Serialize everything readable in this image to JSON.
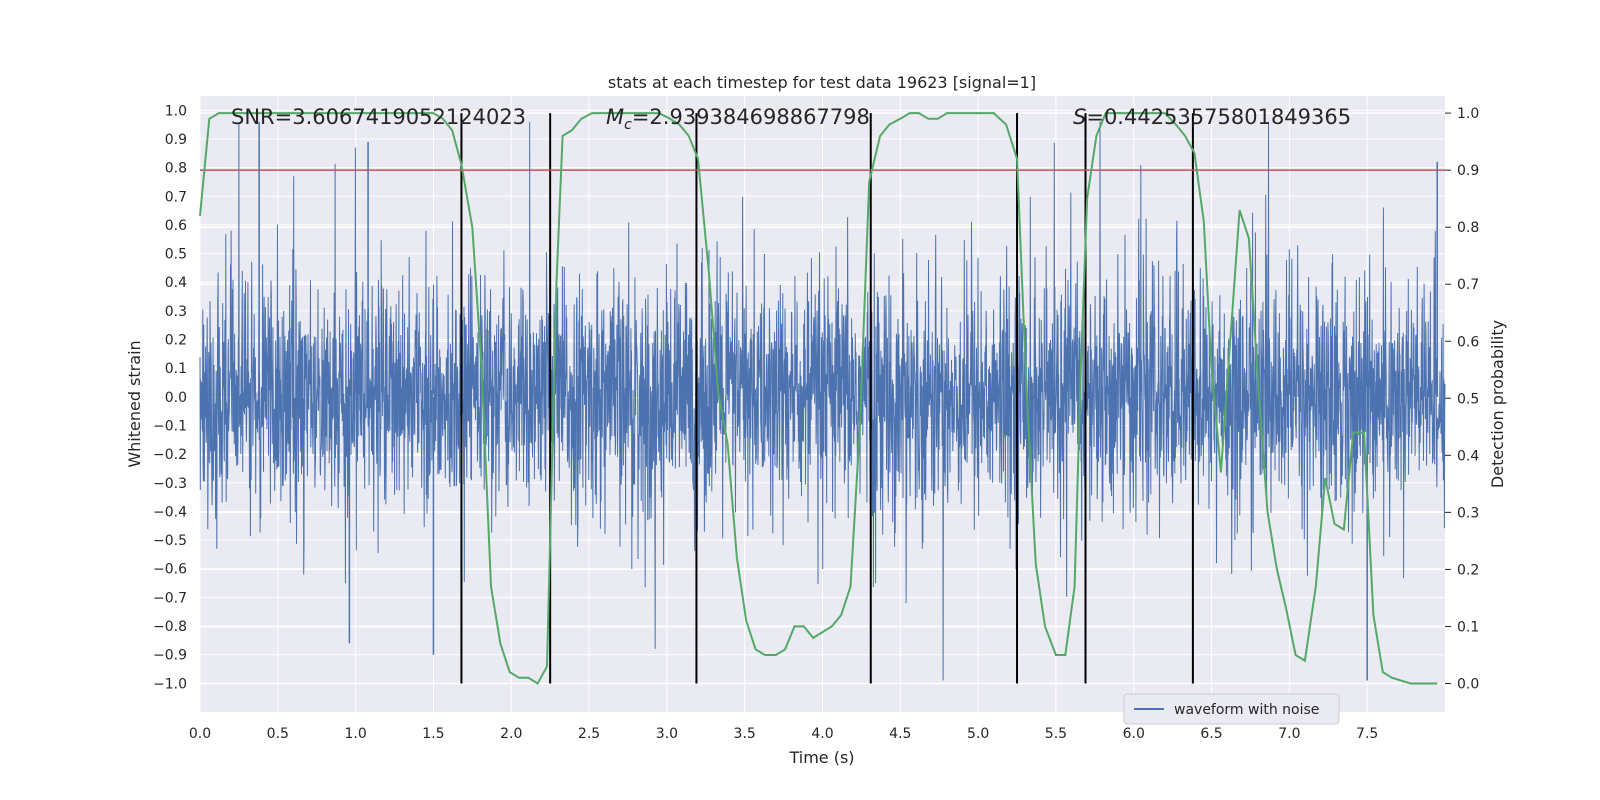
{
  "chart_data": {
    "type": "line",
    "title": "stats at each timestep for test data 19623 [signal=1]",
    "xlabel": "Time (s)",
    "ylabel": "Whitened strain",
    "y2label": "Detection probability",
    "xlim": [
      0,
      8
    ],
    "ylim": [
      -1.1,
      1.05
    ],
    "y2lim": [
      -0.05,
      1.03
    ],
    "x_ticks": [
      "0.0",
      "0.5",
      "1.0",
      "1.5",
      "2.0",
      "2.5",
      "3.0",
      "3.5",
      "4.0",
      "4.5",
      "5.0",
      "5.5",
      "6.0",
      "6.5",
      "7.0",
      "7.5"
    ],
    "y_ticks": [
      "1.0",
      "0.9",
      "0.8",
      "0.7",
      "0.6",
      "0.5",
      "0.4",
      "0.3",
      "0.2",
      "0.1",
      "0.0",
      "−0.1",
      "−0.2",
      "−0.3",
      "−0.4",
      "−0.5",
      "−0.6",
      "−0.7",
      "−0.8",
      "−0.9",
      "−1.0"
    ],
    "y2_ticks": [
      "1.0",
      "0.9",
      "0.8",
      "0.7",
      "0.6",
      "0.5",
      "0.4",
      "0.3",
      "0.2",
      "0.1",
      "0.0"
    ],
    "annotations": {
      "snr": "SNR=3.6067419052124023",
      "mc_symbol": "M",
      "mc_sub": "c",
      "mc_value": "=2.939384698867798",
      "s_symbol": "S",
      "s_value": "=0.44253575801849365"
    },
    "threshold": 0.9,
    "vertical_lines": [
      1.68,
      2.25,
      3.19,
      4.31,
      5.25,
      5.69,
      6.38
    ],
    "grid": true,
    "legend": {
      "position": "lower-right",
      "entries": [
        "waveform with noise"
      ]
    },
    "colors": {
      "waveform": "#4c72b0",
      "probability": "#55a868",
      "threshold": "#c44e52",
      "segments": "#000000",
      "background": "#eaeaf2",
      "grid": "#ffffff"
    },
    "series": [
      {
        "name": "waveform with noise",
        "description_values": "dense noisy strain, typical amplitude ±0.4, peaks to ±1.0",
        "values": [
          {
            "x": 0.38,
            "y": 0.96
          },
          {
            "x": 1.08,
            "y": 0.89
          },
          {
            "x": 7.95,
            "y": 0.82
          },
          {
            "x": 7.5,
            "y": -0.99
          },
          {
            "x": 1.5,
            "y": -0.9
          },
          {
            "x": 0.96,
            "y": -0.86
          }
        ]
      },
      {
        "name": "detection probability",
        "values": [
          {
            "x": 0.0,
            "y": 0.82
          },
          {
            "x": 0.06,
            "y": 0.99
          },
          {
            "x": 0.12,
            "y": 1.0
          },
          {
            "x": 0.5,
            "y": 1.0
          },
          {
            "x": 1.0,
            "y": 1.0
          },
          {
            "x": 1.5,
            "y": 1.0
          },
          {
            "x": 1.56,
            "y": 0.99
          },
          {
            "x": 1.62,
            "y": 0.97
          },
          {
            "x": 1.68,
            "y": 0.91
          },
          {
            "x": 1.75,
            "y": 0.8
          },
          {
            "x": 1.81,
            "y": 0.55
          },
          {
            "x": 1.87,
            "y": 0.17
          },
          {
            "x": 1.93,
            "y": 0.07
          },
          {
            "x": 1.99,
            "y": 0.02
          },
          {
            "x": 2.05,
            "y": 0.01
          },
          {
            "x": 2.11,
            "y": 0.01
          },
          {
            "x": 2.17,
            "y": 0.0
          },
          {
            "x": 2.23,
            "y": 0.03
          },
          {
            "x": 2.29,
            "y": 0.7
          },
          {
            "x": 2.33,
            "y": 0.96
          },
          {
            "x": 2.39,
            "y": 0.97
          },
          {
            "x": 2.45,
            "y": 0.99
          },
          {
            "x": 2.52,
            "y": 1.0
          },
          {
            "x": 2.6,
            "y": 1.0
          },
          {
            "x": 2.8,
            "y": 1.0
          },
          {
            "x": 2.95,
            "y": 1.0
          },
          {
            "x": 3.02,
            "y": 0.99
          },
          {
            "x": 3.08,
            "y": 0.98
          },
          {
            "x": 3.14,
            "y": 0.96
          },
          {
            "x": 3.2,
            "y": 0.92
          },
          {
            "x": 3.27,
            "y": 0.72
          },
          {
            "x": 3.33,
            "y": 0.51
          },
          {
            "x": 3.39,
            "y": 0.42
          },
          {
            "x": 3.45,
            "y": 0.22
          },
          {
            "x": 3.51,
            "y": 0.11
          },
          {
            "x": 3.57,
            "y": 0.06
          },
          {
            "x": 3.63,
            "y": 0.05
          },
          {
            "x": 3.7,
            "y": 0.05
          },
          {
            "x": 3.76,
            "y": 0.06
          },
          {
            "x": 3.82,
            "y": 0.1
          },
          {
            "x": 3.88,
            "y": 0.1
          },
          {
            "x": 3.94,
            "y": 0.08
          },
          {
            "x": 4.0,
            "y": 0.09
          },
          {
            "x": 4.06,
            "y": 0.1
          },
          {
            "x": 4.12,
            "y": 0.12
          },
          {
            "x": 4.18,
            "y": 0.17
          },
          {
            "x": 4.24,
            "y": 0.45
          },
          {
            "x": 4.3,
            "y": 0.88
          },
          {
            "x": 4.37,
            "y": 0.96
          },
          {
            "x": 4.43,
            "y": 0.98
          },
          {
            "x": 4.5,
            "y": 0.99
          },
          {
            "x": 4.56,
            "y": 1.0
          },
          {
            "x": 4.62,
            "y": 1.0
          },
          {
            "x": 4.68,
            "y": 0.99
          },
          {
            "x": 4.74,
            "y": 0.99
          },
          {
            "x": 4.8,
            "y": 1.0
          },
          {
            "x": 4.9,
            "y": 1.0
          },
          {
            "x": 5.0,
            "y": 1.0
          },
          {
            "x": 5.1,
            "y": 1.0
          },
          {
            "x": 5.18,
            "y": 0.98
          },
          {
            "x": 5.25,
            "y": 0.92
          },
          {
            "x": 5.31,
            "y": 0.52
          },
          {
            "x": 5.37,
            "y": 0.21
          },
          {
            "x": 5.43,
            "y": 0.1
          },
          {
            "x": 5.5,
            "y": 0.05
          },
          {
            "x": 5.56,
            "y": 0.05
          },
          {
            "x": 5.62,
            "y": 0.17
          },
          {
            "x": 5.66,
            "y": 0.55
          },
          {
            "x": 5.7,
            "y": 0.85
          },
          {
            "x": 5.76,
            "y": 0.96
          },
          {
            "x": 5.82,
            "y": 1.0
          },
          {
            "x": 5.9,
            "y": 1.0
          },
          {
            "x": 6.0,
            "y": 1.0
          },
          {
            "x": 6.1,
            "y": 1.0
          },
          {
            "x": 6.2,
            "y": 1.0
          },
          {
            "x": 6.27,
            "y": 0.98
          },
          {
            "x": 6.33,
            "y": 0.96
          },
          {
            "x": 6.39,
            "y": 0.93
          },
          {
            "x": 6.45,
            "y": 0.81
          },
          {
            "x": 6.5,
            "y": 0.55
          },
          {
            "x": 6.56,
            "y": 0.37
          },
          {
            "x": 6.62,
            "y": 0.6
          },
          {
            "x": 6.68,
            "y": 0.83
          },
          {
            "x": 6.74,
            "y": 0.78
          },
          {
            "x": 6.8,
            "y": 0.52
          },
          {
            "x": 6.86,
            "y": 0.3
          },
          {
            "x": 6.92,
            "y": 0.2
          },
          {
            "x": 6.98,
            "y": 0.13
          },
          {
            "x": 7.04,
            "y": 0.05
          },
          {
            "x": 7.1,
            "y": 0.04
          },
          {
            "x": 7.17,
            "y": 0.17
          },
          {
            "x": 7.23,
            "y": 0.36
          },
          {
            "x": 7.29,
            "y": 0.28
          },
          {
            "x": 7.35,
            "y": 0.27
          },
          {
            "x": 7.41,
            "y": 0.44
          },
          {
            "x": 7.48,
            "y": 0.44
          },
          {
            "x": 7.54,
            "y": 0.12
          },
          {
            "x": 7.6,
            "y": 0.02
          },
          {
            "x": 7.66,
            "y": 0.01
          },
          {
            "x": 7.78,
            "y": 0.0
          },
          {
            "x": 7.95,
            "y": 0.0
          }
        ]
      }
    ]
  }
}
